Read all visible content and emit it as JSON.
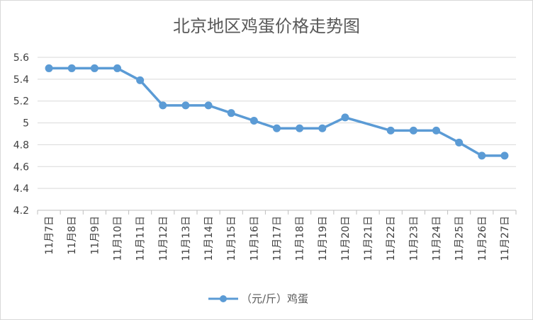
{
  "chart_data": {
    "type": "line",
    "title": "北京地区鸡蛋价格走势图",
    "categories": [
      "11月7日",
      "11月8日",
      "11月9日",
      "11月10日",
      "11月11日",
      "11月12日",
      "11月13日",
      "11月14日",
      "11月15日",
      "11月16日",
      "11月17日",
      "11月18日",
      "11月19日",
      "11月20日",
      "11月21日",
      "11月22日",
      "11月23日",
      "11月24日",
      "11月25日",
      "11月26日",
      "11月27日"
    ],
    "series": [
      {
        "name": "（元/斤）鸡蛋",
        "values": [
          5.5,
          5.5,
          5.5,
          5.5,
          5.39,
          5.16,
          5.16,
          5.16,
          5.09,
          5.02,
          4.95,
          4.95,
          4.95,
          5.05,
          null,
          4.93,
          4.93,
          4.93,
          4.82,
          4.7,
          4.7
        ]
      }
    ],
    "ylim": [
      4.2,
      5.6
    ],
    "yticks": [
      "4.2",
      "4.4",
      "4.6",
      "4.8",
      "5",
      "5.2",
      "5.4",
      "5.6"
    ],
    "grid": true,
    "legend": "bottom",
    "colors": {
      "series": "#5B9BD5",
      "grid": "#d9d9d9",
      "axis": "#bfbfbf"
    }
  }
}
